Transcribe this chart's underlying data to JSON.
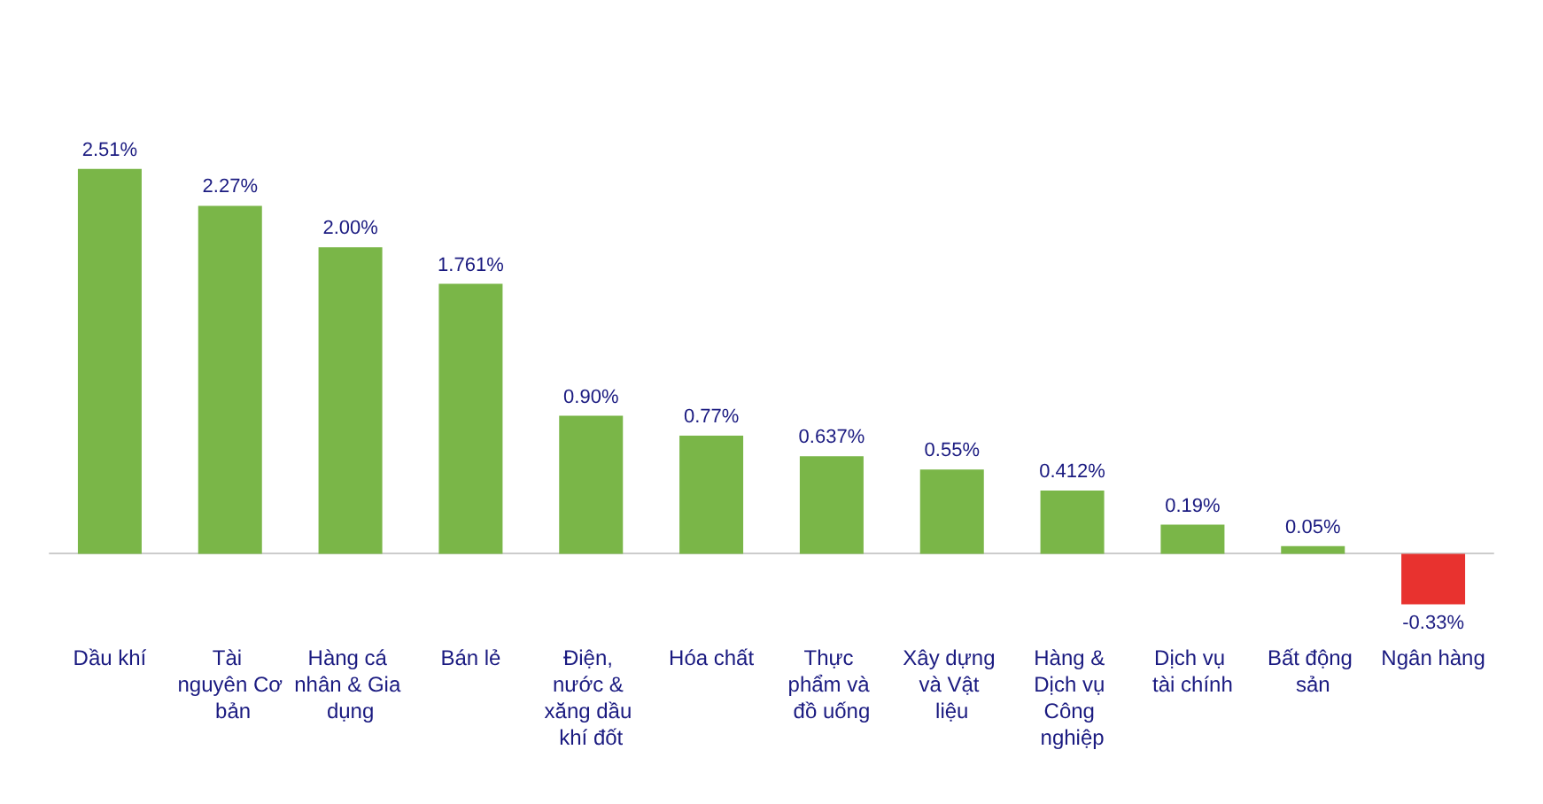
{
  "chart_data": {
    "type": "bar",
    "categories": [
      "Dầu khí",
      "Tài nguyên Cơ bản",
      "Hàng cá nhân & Gia dụng",
      "Bán lẻ",
      "Điện, nước & xăng dầu khí đốt",
      "Hóa chất",
      "Thực phẩm và đồ uống",
      "Xây dựng và Vật liệu",
      "Hàng & Dịch vụ Công nghiệp",
      "Dịch vụ tài chính",
      "Bất động sản",
      "Ngân hàng"
    ],
    "values": [
      2.51,
      2.27,
      2.0,
      1.761,
      0.9,
      0.77,
      0.637,
      0.55,
      0.412,
      0.19,
      0.05,
      -0.33
    ],
    "value_labels": [
      "2.51%",
      "2.27%",
      "2.00%",
      "1.761%",
      "0.90%",
      "0.77%",
      "0.637%",
      "0.55%",
      "0.412%",
      "0.19%",
      "0.05%",
      "-0.33%"
    ],
    "colors": [
      "#7ab648",
      "#7ab648",
      "#7ab648",
      "#7ab648",
      "#7ab648",
      "#7ab648",
      "#7ab648",
      "#7ab648",
      "#7ab648",
      "#7ab648",
      "#7ab648",
      "#e8322f"
    ]
  }
}
